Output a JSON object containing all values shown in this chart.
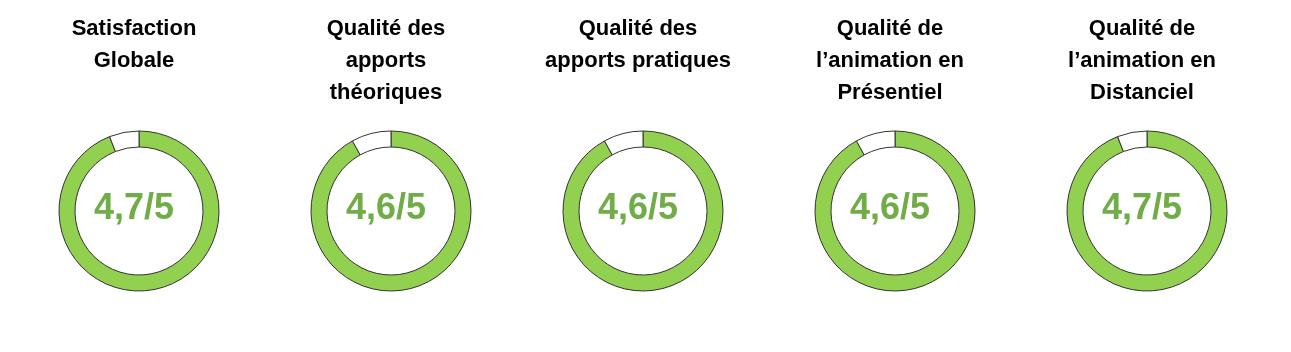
{
  "chart_data": [
    {
      "type": "donut",
      "title": "Satisfaction Globale",
      "categories": [
        null,
        null
      ],
      "values": [
        4.7,
        0.3
      ],
      "colors": [
        "#92d050",
        "#ffffff"
      ],
      "value_labels": [
        "4,7/5",
        null
      ]
    },
    {
      "type": "donut",
      "title": "Qualité des apports théoriques",
      "categories": [
        null,
        null
      ],
      "values": [
        4.6,
        0.4
      ],
      "colors": [
        "#92d050",
        "#ffffff"
      ],
      "value_labels": [
        "4,6/5",
        null
      ]
    },
    {
      "type": "donut",
      "title": "Qualité des apports pratiques",
      "categories": [
        null,
        null
      ],
      "values": [
        4.6,
        0.4
      ],
      "colors": [
        "#92d050",
        "#ffffff"
      ],
      "value_labels": [
        "4,6/5",
        null
      ]
    },
    {
      "type": "donut",
      "title": "Qualité de l’animation en Présentiel",
      "categories": [
        null,
        null
      ],
      "values": [
        4.6,
        0.4
      ],
      "colors": [
        "#92d050",
        "#ffffff"
      ],
      "value_labels": [
        "4,6/5",
        null
      ]
    },
    {
      "type": "donut",
      "title": "Qualité de l’animation en Distanciel",
      "categories": [
        null,
        null
      ],
      "values": [
        4.7,
        0.3
      ],
      "colors": [
        "#92d050",
        "#ffffff"
      ],
      "value_labels": [
        "4,7/5",
        null
      ]
    }
  ]
}
